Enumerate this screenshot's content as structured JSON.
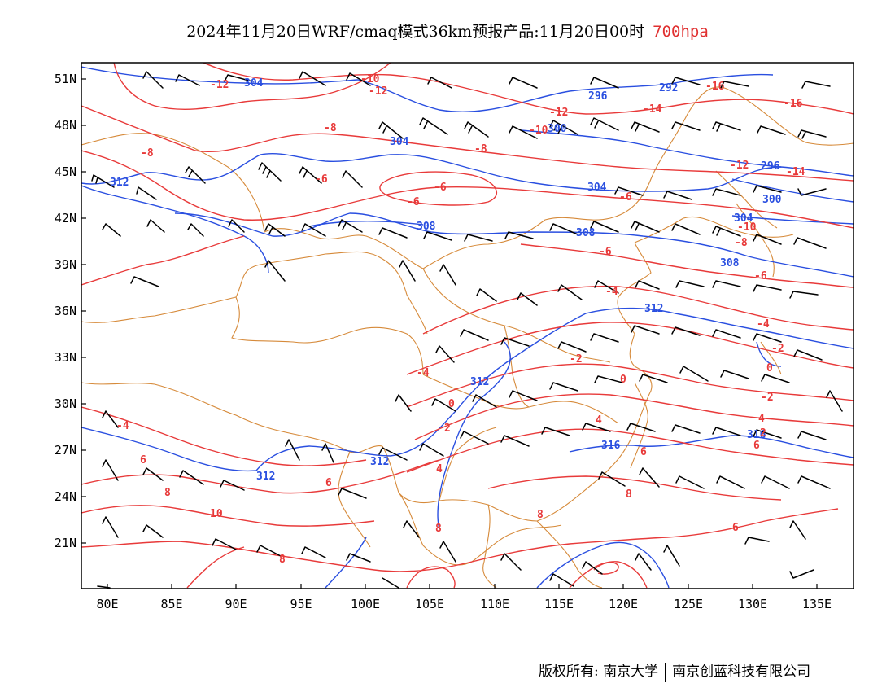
{
  "title": {
    "text": "2024年11月20日WRF/cmaq模式36km预报产品:11月20日00时",
    "level": "700hpa"
  },
  "axes": {
    "lon_ticks": [
      "80E",
      "85E",
      "90E",
      "95E",
      "100E",
      "105E",
      "110E",
      "115E",
      "120E",
      "125E",
      "130E",
      "135E"
    ],
    "lat_ticks": [
      "51N",
      "48N",
      "45N",
      "42N",
      "39N",
      "36N",
      "33N",
      "30N",
      "27N",
      "24N",
      "21N"
    ]
  },
  "colors": {
    "temperature_contours": "#e83a3a",
    "geopotential_contours": "#2a4fe0",
    "boundaries": "#d68a3a",
    "wind_barbs": "#000000",
    "frame": "#000000"
  },
  "geopotential_labels": [
    "304",
    "292",
    "296",
    "300",
    "304",
    "312",
    "304",
    "308",
    "296",
    "300",
    "304",
    "308",
    "308",
    "312",
    "312",
    "312",
    "316",
    "312",
    "316"
  ],
  "temperature_labels": [
    "-12",
    "-10",
    "-12",
    "-16",
    "-14",
    "-16",
    "-12",
    "-10",
    "-8",
    "-8",
    "-8",
    "-12",
    "-14",
    "-6",
    "-6",
    "-10",
    "-6",
    "-8",
    "-6",
    "-6",
    "-6",
    "-4",
    "-4",
    "-2",
    "-4",
    "0",
    "0",
    "-2",
    "0",
    "-2",
    "2",
    "4",
    "-4",
    "4",
    "2",
    "4",
    "6",
    "6",
    "6",
    "8",
    "6",
    "8",
    "10",
    "8",
    "8",
    "6",
    "8"
  ],
  "footer": {
    "left": "版权所有: 南京大学",
    "right": "南京创蓝科技有限公司"
  }
}
